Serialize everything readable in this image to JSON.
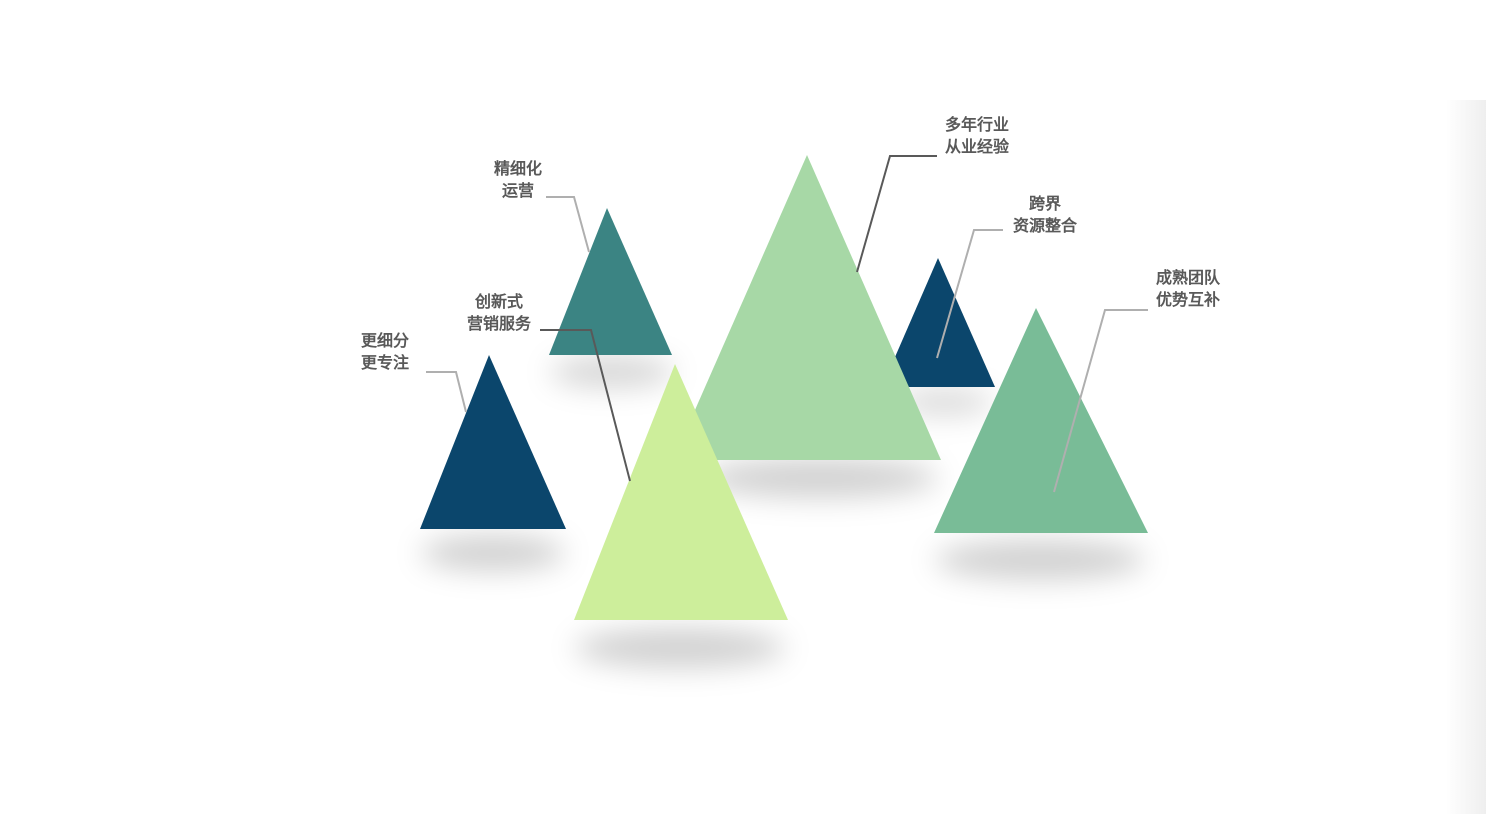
{
  "labels": {
    "refined": [
      "精细化",
      "运营"
    ],
    "innovative": [
      "创新式",
      "营销服务"
    ],
    "focused": [
      "更细分",
      "更专注"
    ],
    "experience": [
      "多年行业",
      "从业经验"
    ],
    "resources": [
      "跨界",
      "资源整合"
    ],
    "team": [
      "成熟团队",
      "优势互补"
    ]
  },
  "colors": {
    "dark_blue": "#0B466C",
    "teal": "#3B8483",
    "light_green": "#A7D8A6",
    "lime": "#CDEE9B",
    "mid_green": "#79BC97",
    "connector_dark": "#595959",
    "connector_light": "#AFAFAF",
    "label_text": "#595959"
  }
}
